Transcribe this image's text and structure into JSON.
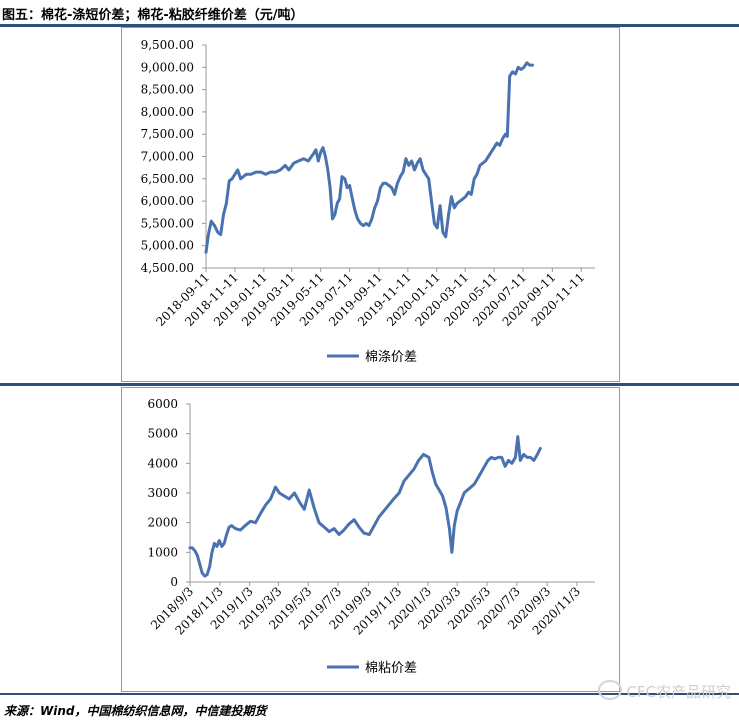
{
  "header": {
    "title": "图五：棉花-涤短价差；棉花-粘胶纤维价差（元/吨）"
  },
  "footer": {
    "source": "来源：Wind，中国棉纺织信息网，中信建投期货",
    "watermark": "CFC农产品研究"
  },
  "colors": {
    "line": "#4a72b0",
    "rule": "#2e4e7e",
    "frame": "#9a9a9a"
  },
  "chart_data": [
    {
      "type": "line",
      "title": "",
      "xlabel": "",
      "ylabel": "",
      "ylim": [
        4500,
        9500
      ],
      "grid": false,
      "legend": "bottom-center",
      "y_ticks": [
        "4,500.00",
        "5,000.00",
        "5,500.00",
        "6,000.00",
        "6,500.00",
        "7,000.00",
        "7,500.00",
        "8,000.00",
        "8,500.00",
        "9,000.00",
        "9,500.00"
      ],
      "x_ticks": [
        "2018-09-11",
        "2018-11-11",
        "2019-01-11",
        "2019-03-11",
        "2019-05-11",
        "2019-07-11",
        "2019-09-11",
        "2019-11-11",
        "2020-01-11",
        "2020-03-11",
        "2020-05-11",
        "2020-07-11",
        "2020-09-11",
        "2020-11-11"
      ],
      "series": [
        {
          "name": "棉涤价差",
          "points": [
            [
              "2018-09-11",
              4850
            ],
            [
              "2018-09-16",
              5250
            ],
            [
              "2018-09-22",
              5550
            ],
            [
              "2018-09-29",
              5450
            ],
            [
              "2018-10-06",
              5300
            ],
            [
              "2018-10-12",
              5250
            ],
            [
              "2018-10-18",
              5700
            ],
            [
              "2018-10-24",
              5950
            ],
            [
              "2018-10-30",
              6450
            ],
            [
              "2018-11-05",
              6500
            ],
            [
              "2018-11-11",
              6600
            ],
            [
              "2018-11-17",
              6700
            ],
            [
              "2018-11-23",
              6500
            ],
            [
              "2018-11-29",
              6550
            ],
            [
              "2018-12-05",
              6600
            ],
            [
              "2018-12-15",
              6600
            ],
            [
              "2018-12-25",
              6650
            ],
            [
              "2019-01-05",
              6650
            ],
            [
              "2019-01-15",
              6600
            ],
            [
              "2019-01-25",
              6650
            ],
            [
              "2019-02-05",
              6650
            ],
            [
              "2019-02-15",
              6700
            ],
            [
              "2019-02-25",
              6800
            ],
            [
              "2019-03-05",
              6700
            ],
            [
              "2019-03-15",
              6850
            ],
            [
              "2019-03-25",
              6900
            ],
            [
              "2019-04-05",
              6950
            ],
            [
              "2019-04-15",
              6900
            ],
            [
              "2019-04-25",
              7050
            ],
            [
              "2019-05-01",
              7150
            ],
            [
              "2019-05-06",
              6900
            ],
            [
              "2019-05-11",
              7100
            ],
            [
              "2019-05-16",
              7200
            ],
            [
              "2019-05-21",
              7000
            ],
            [
              "2019-05-26",
              6700
            ],
            [
              "2019-05-31",
              6300
            ],
            [
              "2019-06-05",
              5600
            ],
            [
              "2019-06-10",
              5700
            ],
            [
              "2019-06-15",
              5950
            ],
            [
              "2019-06-20",
              6050
            ],
            [
              "2019-06-25",
              6550
            ],
            [
              "2019-07-01",
              6500
            ],
            [
              "2019-07-06",
              6300
            ],
            [
              "2019-07-11",
              6350
            ],
            [
              "2019-07-16",
              6100
            ],
            [
              "2019-07-22",
              5800
            ],
            [
              "2019-07-28",
              5600
            ],
            [
              "2019-08-03",
              5500
            ],
            [
              "2019-08-09",
              5450
            ],
            [
              "2019-08-15",
              5500
            ],
            [
              "2019-08-21",
              5450
            ],
            [
              "2019-08-27",
              5600
            ],
            [
              "2019-09-02",
              5850
            ],
            [
              "2019-09-08",
              6000
            ],
            [
              "2019-09-14",
              6300
            ],
            [
              "2019-09-20",
              6400
            ],
            [
              "2019-09-26",
              6400
            ],
            [
              "2019-10-02",
              6350
            ],
            [
              "2019-10-08",
              6300
            ],
            [
              "2019-10-14",
              6150
            ],
            [
              "2019-10-20",
              6400
            ],
            [
              "2019-10-26",
              6550
            ],
            [
              "2019-11-01",
              6650
            ],
            [
              "2019-11-07",
              6950
            ],
            [
              "2019-11-13",
              6800
            ],
            [
              "2019-11-19",
              6900
            ],
            [
              "2019-11-25",
              6700
            ],
            [
              "2019-12-01",
              6850
            ],
            [
              "2019-12-07",
              6950
            ],
            [
              "2019-12-13",
              6700
            ],
            [
              "2019-12-19",
              6600
            ],
            [
              "2019-12-25",
              6500
            ],
            [
              "2019-12-31",
              6000
            ],
            [
              "2020-01-06",
              5500
            ],
            [
              "2020-01-12",
              5400
            ],
            [
              "2020-01-18",
              5900
            ],
            [
              "2020-01-24",
              5300
            ],
            [
              "2020-01-30",
              5200
            ],
            [
              "2020-02-05",
              5700
            ],
            [
              "2020-02-11",
              6100
            ],
            [
              "2020-02-17",
              5850
            ],
            [
              "2020-02-23",
              5950
            ],
            [
              "2020-02-29",
              6000
            ],
            [
              "2020-03-06",
              6050
            ],
            [
              "2020-03-12",
              6100
            ],
            [
              "2020-03-18",
              6200
            ],
            [
              "2020-03-24",
              6150
            ],
            [
              "2020-03-30",
              6500
            ],
            [
              "2020-04-05",
              6600
            ],
            [
              "2020-04-11",
              6800
            ],
            [
              "2020-04-17",
              6850
            ],
            [
              "2020-04-23",
              6900
            ],
            [
              "2020-04-29",
              7000
            ],
            [
              "2020-05-05",
              7100
            ],
            [
              "2020-05-11",
              7200
            ],
            [
              "2020-05-17",
              7300
            ],
            [
              "2020-05-23",
              7250
            ],
            [
              "2020-05-29",
              7400
            ],
            [
              "2020-06-04",
              7500
            ],
            [
              "2020-06-08",
              7450
            ],
            [
              "2020-06-13",
              8800
            ],
            [
              "2020-06-19",
              8900
            ],
            [
              "2020-06-25",
              8850
            ],
            [
              "2020-07-01",
              9000
            ],
            [
              "2020-07-07",
              8950
            ],
            [
              "2020-07-13",
              9000
            ],
            [
              "2020-07-19",
              9100
            ],
            [
              "2020-07-25",
              9050
            ],
            [
              "2020-07-31",
              9050
            ]
          ]
        }
      ]
    },
    {
      "type": "line",
      "title": "",
      "xlabel": "",
      "ylabel": "",
      "ylim": [
        0,
        6000
      ],
      "grid": false,
      "legend": "bottom-center",
      "y_ticks": [
        "0",
        "1000",
        "2000",
        "3000",
        "4000",
        "5000",
        "6000"
      ],
      "x_ticks": [
        "2018/9/3",
        "2018/11/3",
        "2019/1/3",
        "2019/3/3",
        "2019/5/3",
        "2019/7/3",
        "2019/9/3",
        "2019/11/3",
        "2020/1/3",
        "2020/3/3",
        "2020/5/3",
        "2020/7/3",
        "2020/9/3",
        "2020/11/3"
      ],
      "series": [
        {
          "name": "棉粘价差",
          "points": [
            [
              "2018-09-03",
              1150
            ],
            [
              "2018-09-08",
              1150
            ],
            [
              "2018-09-13",
              1050
            ],
            [
              "2018-09-18",
              900
            ],
            [
              "2018-09-23",
              600
            ],
            [
              "2018-09-28",
              300
            ],
            [
              "2018-10-03",
              200
            ],
            [
              "2018-10-08",
              250
            ],
            [
              "2018-10-13",
              500
            ],
            [
              "2018-10-18",
              1000
            ],
            [
              "2018-10-23",
              1300
            ],
            [
              "2018-10-28",
              1200
            ],
            [
              "2018-11-02",
              1400
            ],
            [
              "2018-11-07",
              1200
            ],
            [
              "2018-11-12",
              1300
            ],
            [
              "2018-11-17",
              1600
            ],
            [
              "2018-11-22",
              1850
            ],
            [
              "2018-11-27",
              1900
            ],
            [
              "2018-12-05",
              1800
            ],
            [
              "2018-12-15",
              1750
            ],
            [
              "2018-12-25",
              1900
            ],
            [
              "2019-01-05",
              2050
            ],
            [
              "2019-01-15",
              2000
            ],
            [
              "2019-01-25",
              2300
            ],
            [
              "2019-02-05",
              2600
            ],
            [
              "2019-02-15",
              2800
            ],
            [
              "2019-02-25",
              3200
            ],
            [
              "2019-03-05",
              3000
            ],
            [
              "2019-03-15",
              2900
            ],
            [
              "2019-03-25",
              2800
            ],
            [
              "2019-04-05",
              3000
            ],
            [
              "2019-04-15",
              2700
            ],
            [
              "2019-04-25",
              2450
            ],
            [
              "2019-05-05",
              3100
            ],
            [
              "2019-05-15",
              2500
            ],
            [
              "2019-05-25",
              2000
            ],
            [
              "2019-06-05",
              1850
            ],
            [
              "2019-06-15",
              1700
            ],
            [
              "2019-06-25",
              1800
            ],
            [
              "2019-07-05",
              1600
            ],
            [
              "2019-07-15",
              1750
            ],
            [
              "2019-07-25",
              1950
            ],
            [
              "2019-08-05",
              2100
            ],
            [
              "2019-08-15",
              1850
            ],
            [
              "2019-08-25",
              1650
            ],
            [
              "2019-09-05",
              1600
            ],
            [
              "2019-09-15",
              1900
            ],
            [
              "2019-09-25",
              2200
            ],
            [
              "2019-10-05",
              2400
            ],
            [
              "2019-10-15",
              2600
            ],
            [
              "2019-10-25",
              2800
            ],
            [
              "2019-11-05",
              3000
            ],
            [
              "2019-11-15",
              3400
            ],
            [
              "2019-11-25",
              3600
            ],
            [
              "2019-12-05",
              3800
            ],
            [
              "2019-12-15",
              4100
            ],
            [
              "2019-12-25",
              4300
            ],
            [
              "2020-01-05",
              4200
            ],
            [
              "2020-01-12",
              3700
            ],
            [
              "2020-01-19",
              3300
            ],
            [
              "2020-01-26",
              3100
            ],
            [
              "2020-02-02",
              2900
            ],
            [
              "2020-02-09",
              2500
            ],
            [
              "2020-02-16",
              1800
            ],
            [
              "2020-02-21",
              1000
            ],
            [
              "2020-02-26",
              1900
            ],
            [
              "2020-03-03",
              2400
            ],
            [
              "2020-03-10",
              2700
            ],
            [
              "2020-03-17",
              3000
            ],
            [
              "2020-03-24",
              3100
            ],
            [
              "2020-03-31",
              3200
            ],
            [
              "2020-04-07",
              3300
            ],
            [
              "2020-04-14",
              3500
            ],
            [
              "2020-04-21",
              3700
            ],
            [
              "2020-04-28",
              3900
            ],
            [
              "2020-05-05",
              4100
            ],
            [
              "2020-05-12",
              4200
            ],
            [
              "2020-05-19",
              4150
            ],
            [
              "2020-05-26",
              4200
            ],
            [
              "2020-06-02",
              4200
            ],
            [
              "2020-06-09",
              3900
            ],
            [
              "2020-06-16",
              4100
            ],
            [
              "2020-06-23",
              4000
            ],
            [
              "2020-06-30",
              4200
            ],
            [
              "2020-07-05",
              4900
            ],
            [
              "2020-07-10",
              4100
            ],
            [
              "2020-07-17",
              4300
            ],
            [
              "2020-07-24",
              4200
            ],
            [
              "2020-07-31",
              4200
            ],
            [
              "2020-08-07",
              4100
            ],
            [
              "2020-08-14",
              4300
            ],
            [
              "2020-08-20",
              4500
            ]
          ]
        }
      ]
    }
  ]
}
